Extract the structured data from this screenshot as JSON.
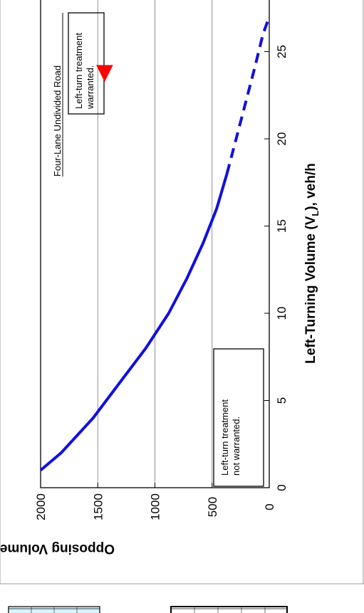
{
  "chart_data": {
    "type": "line",
    "title": "",
    "xlabel": {
      "main": "Left-Turning Volume (V",
      "sub": "L",
      "tail": "), veh/h"
    },
    "ylabel": {
      "main": "Opposing Volume (V",
      "sub": "O",
      "tail": "), veh/h"
    },
    "xlim": [
      0,
      30
    ],
    "ylim": [
      0,
      2000
    ],
    "x_ticks": [
      "0",
      "5",
      "10",
      "15",
      "20",
      "25"
    ],
    "y_ticks": [
      "0",
      "500",
      "1000",
      "1500",
      "2000"
    ],
    "grid": "horizontal",
    "series": [
      {
        "style": "solid",
        "color": "#1010e0",
        "points": [
          [
            1,
            2000
          ],
          [
            2,
            1820
          ],
          [
            3,
            1680
          ],
          [
            4,
            1540
          ],
          [
            6,
            1310
          ],
          [
            8,
            1080
          ],
          [
            10,
            880
          ],
          [
            12,
            720
          ],
          [
            14,
            580
          ],
          [
            16,
            460
          ],
          [
            18,
            370
          ]
        ]
      },
      {
        "style": "dashed",
        "color": "#1010e0",
        "points": [
          [
            18,
            370
          ],
          [
            20,
            290
          ],
          [
            22,
            210
          ],
          [
            24,
            130
          ],
          [
            26,
            55
          ],
          [
            27,
            0
          ]
        ]
      }
    ],
    "annotations": [
      {
        "lines": [
          "Left-turn treatment",
          "warranted."
        ],
        "x": 28,
        "y": 2000,
        "boxed": true
      },
      {
        "lines": [
          "Left-turn treatment",
          "not warranted."
        ],
        "x": 2.8,
        "y": 0,
        "boxed": true
      },
      {
        "lines": [
          "Four-Lane Undivided Road"
        ],
        "x": 28,
        "y": 1400,
        "underlined": true
      }
    ],
    "marker": {
      "shape": "triangle",
      "color": "#ff0000",
      "x": 23.8,
      "y": 1440
    }
  }
}
